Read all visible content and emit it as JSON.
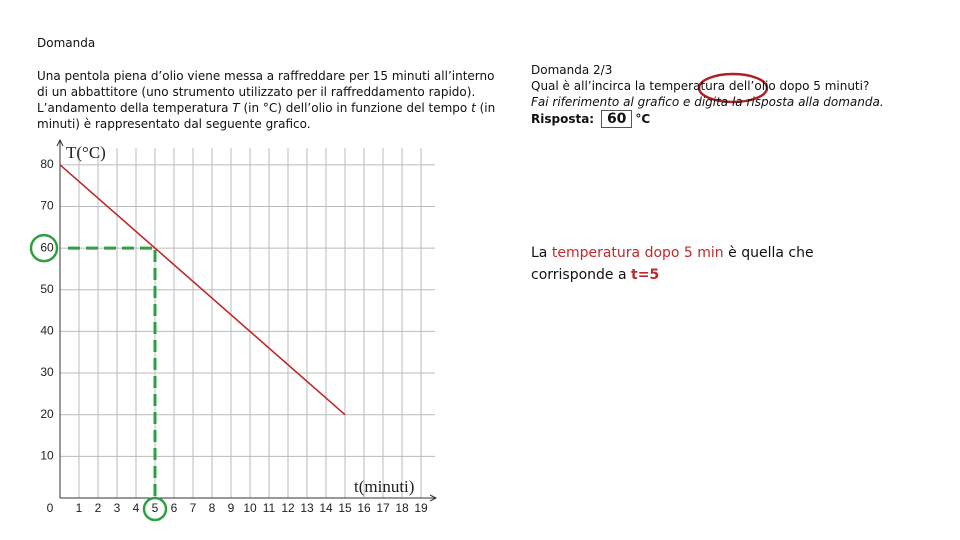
{
  "header": {
    "title": "Domanda"
  },
  "problem": {
    "parts": [
      "Una pentola piena d’olio viene messa a raffreddare per 15 minuti all’interno di un abbattitore (uno strumento utilizzato per il raffreddamento rapido). L’andamento della temperatura ",
      "T",
      " (in °C) dell’olio in funzione del tempo ",
      "t",
      " (in minuti) è rappresentato dal seguente grafico."
    ]
  },
  "question": {
    "title": "Domanda 2/3",
    "text": "Qual è all’incirca la temperatura dell’olio dopo 5 minuti?",
    "hint": "Fai riferimento al grafico e digita la risposta alla domanda.",
    "answer_label": "Risposta:",
    "answer": "60",
    "unit": "°C"
  },
  "explanation": {
    "parts": [
      "La ",
      "temperatura dopo 5 min",
      " è quella che corrisponde a ",
      "t=5"
    ]
  },
  "chart_data": {
    "type": "line",
    "x_label": "t(minuti)",
    "y_label": "T(°C)",
    "xlim": [
      0,
      20
    ],
    "ylim": [
      0,
      85
    ],
    "xticks": [
      0,
      1,
      2,
      3,
      4,
      5,
      6,
      7,
      8,
      9,
      10,
      11,
      12,
      13,
      14,
      15,
      16,
      17,
      18,
      19
    ],
    "yticks": [
      10,
      20,
      30,
      40,
      50,
      60,
      70,
      80
    ],
    "grid": true,
    "series": [
      {
        "color": "#c0292b",
        "x": [
          0,
          15
        ],
        "values": [
          80,
          20
        ]
      }
    ],
    "guide": {
      "x": 5,
      "y": 60,
      "color": "#2ea043"
    }
  }
}
